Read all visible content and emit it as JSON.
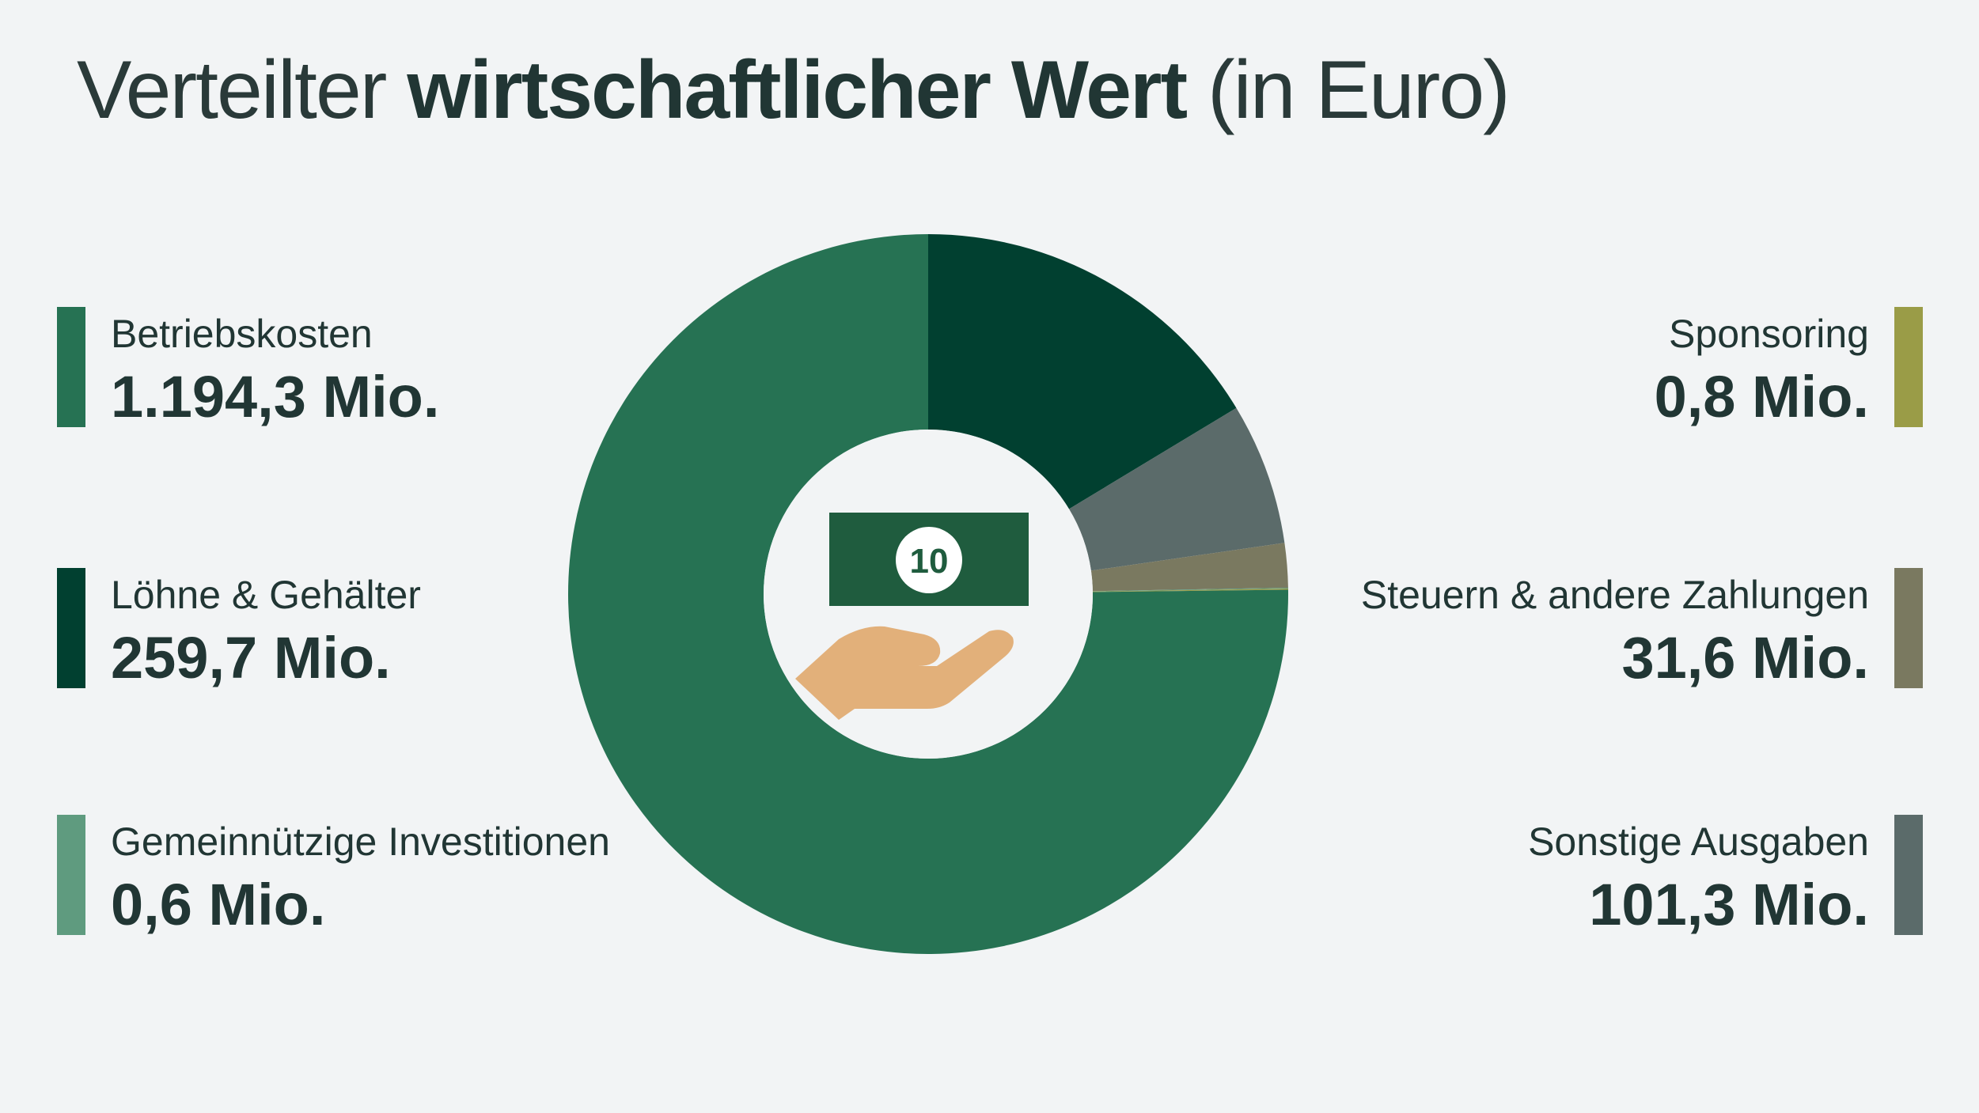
{
  "title": {
    "light": "Verteilter ",
    "bold": "wirtschaftlicher Wert",
    "suffix": " (in Euro)"
  },
  "center_icon": {
    "name": "hand-money-icon",
    "banknote_label": "10",
    "banknote_color": "#1f5c3e",
    "hand_color": "#e2b07a"
  },
  "legend": [
    {
      "key": "betriebskosten",
      "label": "Betriebskosten",
      "value": "1.194,3 Mio.",
      "color": "#267253",
      "side": "left"
    },
    {
      "key": "loehne",
      "label": "Löhne & Gehälter",
      "value": "259,7 Mio.",
      "color": "#014030",
      "side": "left"
    },
    {
      "key": "gemeinnuetzig",
      "label": "Gemeinnützige Investitionen",
      "value": "0,6 Mio.",
      "color": "#5f9b7f",
      "side": "left"
    },
    {
      "key": "sponsoring",
      "label": "Sponsoring",
      "value": "0,8 Mio.",
      "color": "#9a9c47",
      "side": "right"
    },
    {
      "key": "steuern",
      "label": "Steuern & andere Zahlungen",
      "value": "31,6 Mio.",
      "color": "#7a7960",
      "side": "right"
    },
    {
      "key": "sonstige",
      "label": "Sonstige Ausgaben",
      "value": "101,3 Mio.",
      "color": "#5b6b6a",
      "side": "right"
    }
  ],
  "chart_data": {
    "type": "pie",
    "donut": true,
    "unit": "Mio. Euro",
    "slices": [
      {
        "label": "Löhne & Gehälter",
        "value": 259.7,
        "color": "#014030"
      },
      {
        "label": "Sonstige Ausgaben",
        "value": 101.3,
        "color": "#5b6b6a"
      },
      {
        "label": "Steuern & andere Zahlungen",
        "value": 31.6,
        "color": "#7a7960"
      },
      {
        "label": "Gemeinnützige Investitionen",
        "value": 0.6,
        "color": "#5f9b7f"
      },
      {
        "label": "Sponsoring",
        "value": 0.8,
        "color": "#9a9c47"
      },
      {
        "label": "Betriebskosten",
        "value": 1194.3,
        "color": "#267253"
      }
    ],
    "start": "top",
    "direction": "clockwise"
  }
}
